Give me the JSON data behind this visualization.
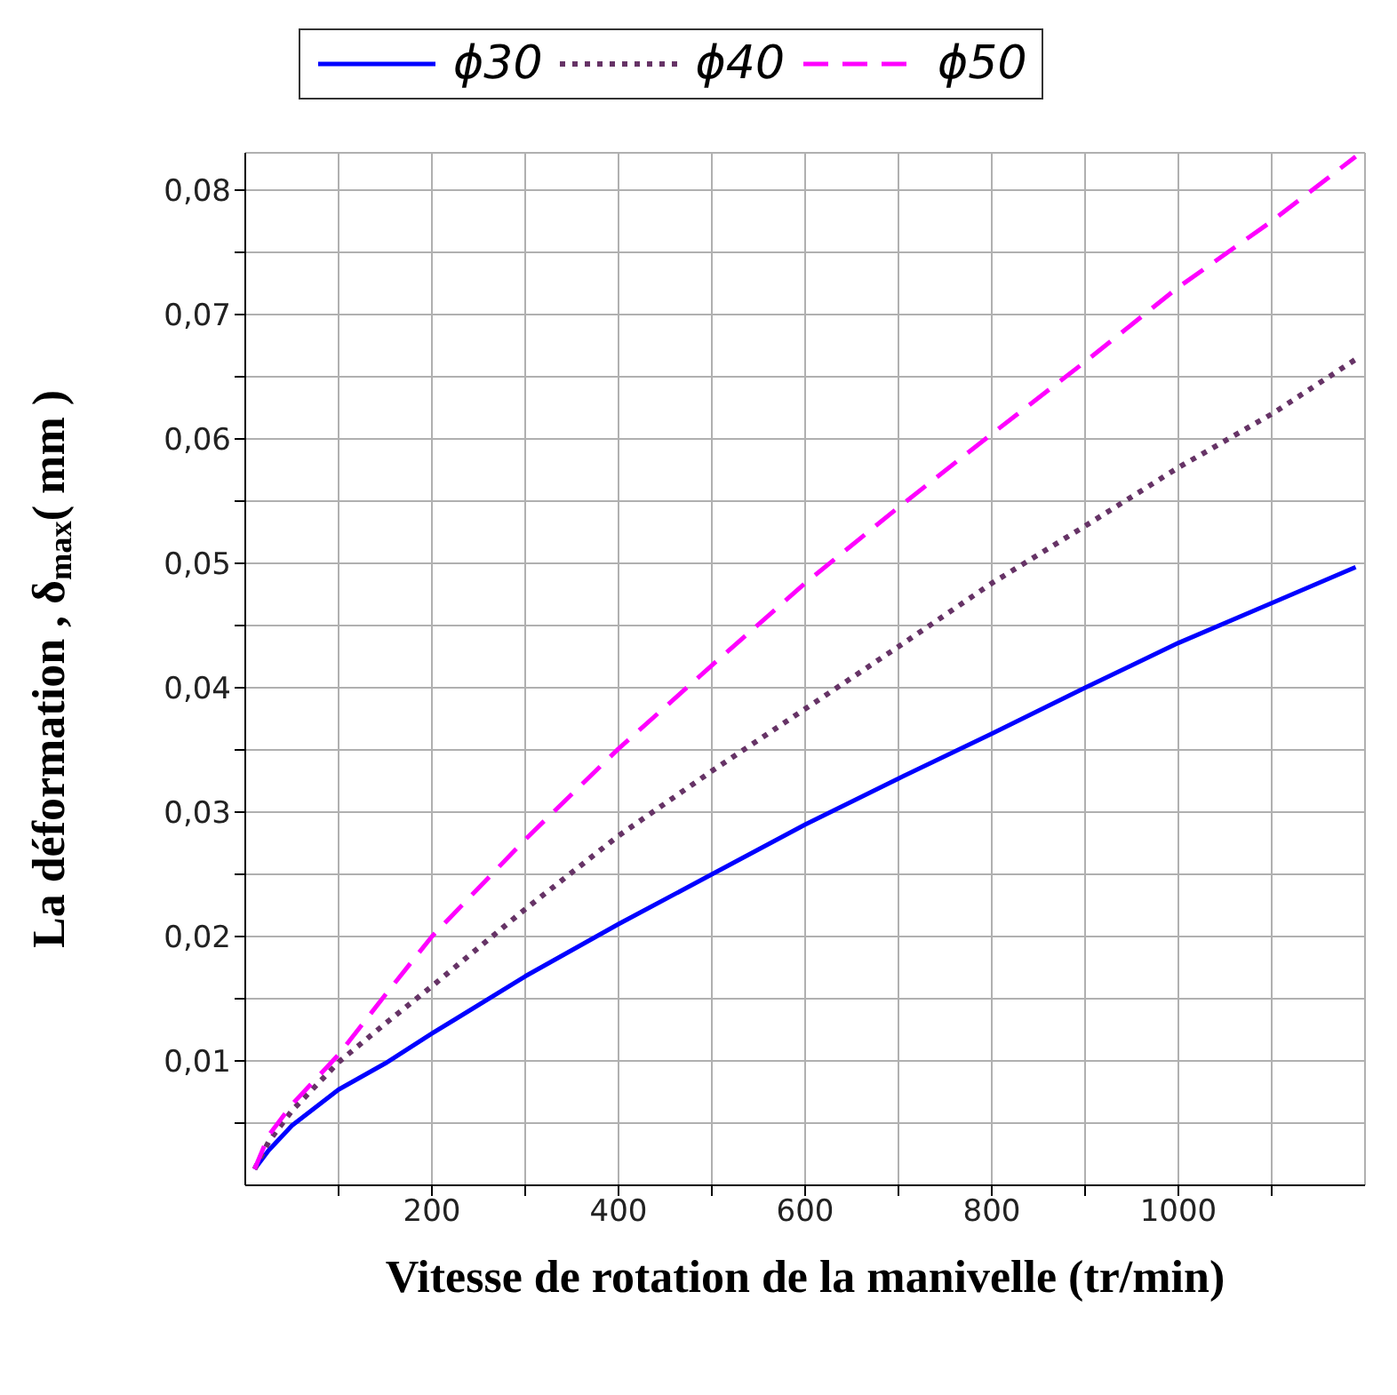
{
  "chart_data": {
    "type": "line",
    "xlabel": "Vitesse de rotation de la manivelle (tr/min)",
    "ylabel": "La déformation , δ$_{max}$( mm )",
    "x": [
      10,
      25,
      50,
      100,
      150,
      200,
      300,
      400,
      500,
      600,
      700,
      800,
      900,
      1000,
      1100,
      1190
    ],
    "series": [
      {
        "name": "ϕ30",
        "color": "#0000ff",
        "line_style": "solid",
        "values": [
          0.0013,
          0.0028,
          0.0048,
          0.0077,
          0.0098,
          0.0122,
          0.0168,
          0.021,
          0.025,
          0.029,
          0.0327,
          0.0363,
          0.04,
          0.0436,
          0.0468,
          0.0497
        ]
      },
      {
        "name": "ϕ40",
        "color": "#663366",
        "line_style": "dotted",
        "values": [
          0.0013,
          0.0035,
          0.006,
          0.0099,
          0.013,
          0.016,
          0.0222,
          0.0281,
          0.0333,
          0.0383,
          0.0433,
          0.0484,
          0.053,
          0.0577,
          0.062,
          0.0664
        ]
      },
      {
        "name": "ϕ50",
        "color": "#ff00ff",
        "line_style": "dashed",
        "values": [
          0.0013,
          0.004,
          0.0065,
          0.0105,
          0.0153,
          0.02,
          0.0278,
          0.0351,
          0.0418,
          0.0484,
          0.0545,
          0.0604,
          0.0662,
          0.0722,
          0.0775,
          0.0827
        ]
      }
    ],
    "xlim": [
      0,
      1200
    ],
    "xticks": [
      {
        "value": 100,
        "label": null
      },
      200,
      {
        "value": 300,
        "label": null
      },
      400,
      {
        "value": 500,
        "label": null
      },
      600,
      {
        "value": 700,
        "label": null
      },
      800,
      {
        "value": 900,
        "label": null
      },
      1000,
      {
        "value": 1100,
        "label": null
      }
    ],
    "ylim": [
      0,
      0.083
    ],
    "yticks": [
      {
        "value": 0.005,
        "label": null
      },
      {
        "value": 0.01,
        "label": "0,01"
      },
      {
        "value": 0.015,
        "label": null
      },
      {
        "value": 0.02,
        "label": "0,02"
      },
      {
        "value": 0.025,
        "label": null
      },
      {
        "value": 0.03,
        "label": "0,03"
      },
      {
        "value": 0.035,
        "label": null
      },
      {
        "value": 0.04,
        "label": "0,04"
      },
      {
        "value": 0.045,
        "label": null
      },
      {
        "value": 0.05,
        "label": "0,05"
      },
      {
        "value": 0.055,
        "label": null
      },
      {
        "value": 0.06,
        "label": "0,06"
      },
      {
        "value": 0.065,
        "label": null
      },
      {
        "value": 0.07,
        "label": "0,07"
      },
      {
        "value": 0.075,
        "label": null
      },
      {
        "value": 0.08,
        "label": "0,08"
      }
    ],
    "grid": true,
    "legend": "top",
    "marker": "none"
  }
}
